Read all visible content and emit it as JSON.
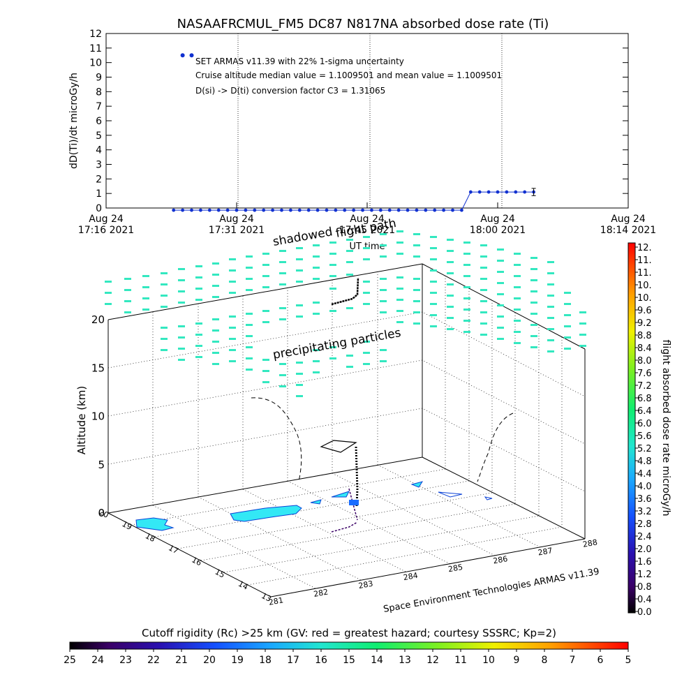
{
  "chart_data": [
    {
      "type": "scatter",
      "title": "NASAAFRCMUL_FM5 DC87 N817NA absorbed dose rate (Ti)",
      "ylabel": "dD(Ti)/dt microGy/h",
      "xlabel": "UT time",
      "ylim": [
        0,
        12
      ],
      "y_ticks": [
        "0",
        "1",
        "2",
        "3",
        "4",
        "5",
        "6",
        "7",
        "8",
        "9",
        "10",
        "11",
        "12"
      ],
      "x_ticks": [
        {
          "date": "Aug 24",
          "time": "17:16 2021"
        },
        {
          "date": "Aug 24",
          "time": "17:31 2021"
        },
        {
          "date": "Aug 24",
          "time": "17:45 2021"
        },
        {
          "date": "Aug 24",
          "time": "18:00 2021"
        },
        {
          "date": "Aug 24",
          "time": "18:14 2021"
        }
      ],
      "grid": true,
      "annotations": [
        "SET ARMAS v11.39 with 22% 1-sigma uncertainty",
        "Cruise altitude median value = 1.1009501 and mean value = 1.1009501",
        "D(si) -> D(ti) conversion factor C3 = 1.31065"
      ],
      "series": [
        {
          "x": [
            "17:24",
            "17:25",
            "17:26",
            "17:27",
            "17:28",
            "17:29",
            "17:30",
            "17:31",
            "17:32",
            "17:33",
            "17:34",
            "17:35",
            "17:36",
            "17:37",
            "17:38",
            "17:39",
            "17:40",
            "17:41",
            "17:42",
            "17:43",
            "17:44",
            "17:45",
            "17:46",
            "17:47",
            "17:48",
            "17:49",
            "17:50",
            "17:51",
            "17:52",
            "17:53",
            "17:54",
            "17:55",
            "17:56",
            "17:57",
            "17:58",
            "17:59",
            "18:00",
            "18:01",
            "18:02",
            "18:03",
            "18:04"
          ],
          "y": [
            -0.15,
            -0.15,
            -0.15,
            -0.15,
            -0.15,
            -0.15,
            -0.15,
            -0.15,
            -0.15,
            -0.15,
            -0.15,
            -0.15,
            -0.15,
            -0.15,
            -0.15,
            -0.15,
            -0.15,
            -0.15,
            -0.15,
            -0.15,
            -0.15,
            -0.15,
            -0.15,
            -0.15,
            -0.15,
            -0.15,
            -0.15,
            -0.15,
            -0.15,
            -0.15,
            -0.15,
            -0.15,
            -0.15,
            1.1,
            1.1,
            1.1,
            1.1,
            1.1,
            1.1,
            1.1,
            1.1
          ]
        },
        {
          "x": [
            "17:25",
            "17:26"
          ],
          "y": [
            10.5,
            10.5
          ]
        }
      ],
      "error_bar": {
        "x": "18:04",
        "y": 1.1,
        "err": 0.25
      }
    },
    {
      "type": "3d-scatter",
      "zlabel": "Altitude (km)",
      "z_ticks": [
        "0",
        "5",
        "10",
        "15",
        "20"
      ],
      "zlim": [
        0,
        20
      ],
      "front_axis_ticks": [
        "281",
        "282",
        "283",
        "284",
        "285",
        "286",
        "287",
        "288"
      ],
      "side_axis_ticks": [
        "13",
        "14",
        "15",
        "16",
        "17",
        "18",
        "19",
        "20"
      ],
      "labels": [
        "shadowed",
        "flight path",
        "precipitating particles"
      ],
      "credit": "Space Environment Technologies ARMAS v11.39",
      "colorbar": {
        "label": "flight absorbed dose rate microGy/h",
        "ticks": [
          "12.",
          "11.",
          "11.",
          "10.",
          "10.",
          "9.6",
          "9.2",
          "8.8",
          "8.4",
          "8.0",
          "7.6",
          "7.2",
          "6.8",
          "6.4",
          "6.0",
          "5.6",
          "5.2",
          "4.8",
          "4.4",
          "4.0",
          "3.6",
          "3.2",
          "2.8",
          "2.4",
          "2.0",
          "1.6",
          "1.2",
          "0.8",
          "0.4",
          "0.0"
        ]
      }
    },
    {
      "type": "colorbar",
      "title": "Cutoff rigidity (Rc) >25 km (GV: red = greatest hazard; courtesy SSSRC; Kp=2)",
      "ticks": [
        "25",
        "24",
        "23",
        "22",
        "21",
        "20",
        "19",
        "18",
        "17",
        "16",
        "15",
        "14",
        "13",
        "12",
        "11",
        "10",
        "9",
        "8",
        "7",
        "6",
        "5"
      ]
    }
  ]
}
